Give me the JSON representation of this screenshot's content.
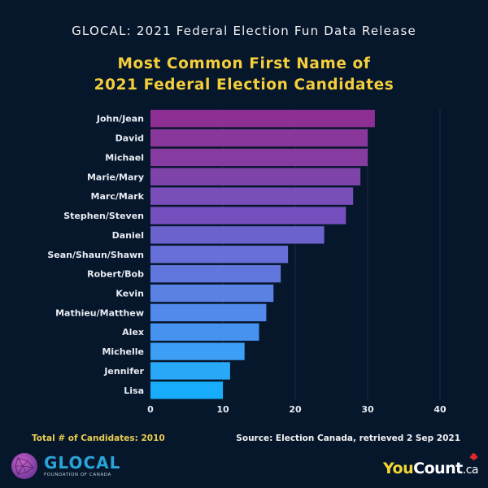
{
  "header": {
    "supertitle": "GLOCAL: 2021 Federal Election Fun Data Release"
  },
  "chart_data": {
    "type": "bar",
    "orientation": "horizontal",
    "title": "Most Common First Name of 2021 Federal Election Candidates",
    "title_lines": [
      "Most Common First Name of",
      "2021 Federal Election Candidates"
    ],
    "xlabel": "",
    "ylabel": "",
    "categories": [
      "John/Jean",
      "David",
      "Michael",
      "Marie/Mary",
      "Marc/Mark",
      "Stephen/Steven",
      "Daniel",
      "Sean/Shaun/Shawn",
      "Robert/Bob",
      "Kevin",
      "Mathieu/Matthew",
      "Alex",
      "Michelle",
      "Jennifer",
      "Lisa"
    ],
    "values": [
      31,
      30,
      30,
      29,
      28,
      27,
      24,
      19,
      18,
      17,
      16,
      15,
      13,
      11,
      10
    ],
    "xlim": [
      0,
      40
    ],
    "xticks": [
      0,
      10,
      20,
      30,
      40
    ],
    "grid": true,
    "colors": [
      "#8e2f93",
      "#89379a",
      "#863ba0",
      "#7f44aa",
      "#7a4eb8",
      "#744fbd",
      "#6b62cd",
      "#6670d8",
      "#6177dd",
      "#5a82e3",
      "#518aea",
      "#4593ee",
      "#3c9ef4",
      "#2aa8f8",
      "#17adfb"
    ]
  },
  "footer": {
    "total_label": "Total # of Candidates: 2010",
    "source_label": "Source: Election Canada, retrieved 2 Sep 2021"
  },
  "logos": {
    "glocal_name": "GLOCAL",
    "glocal_sub": "FOUNDATION OF CANADA",
    "youcount_you": "You",
    "youcount_count": "Count",
    "youcount_ca": ".ca",
    "maple_glyph": "🍁"
  },
  "theme": {
    "background": "#06162b",
    "title_color": "#f5cf3b",
    "label_color": "#e8ecf2",
    "grid_color": "#1c2b42"
  }
}
